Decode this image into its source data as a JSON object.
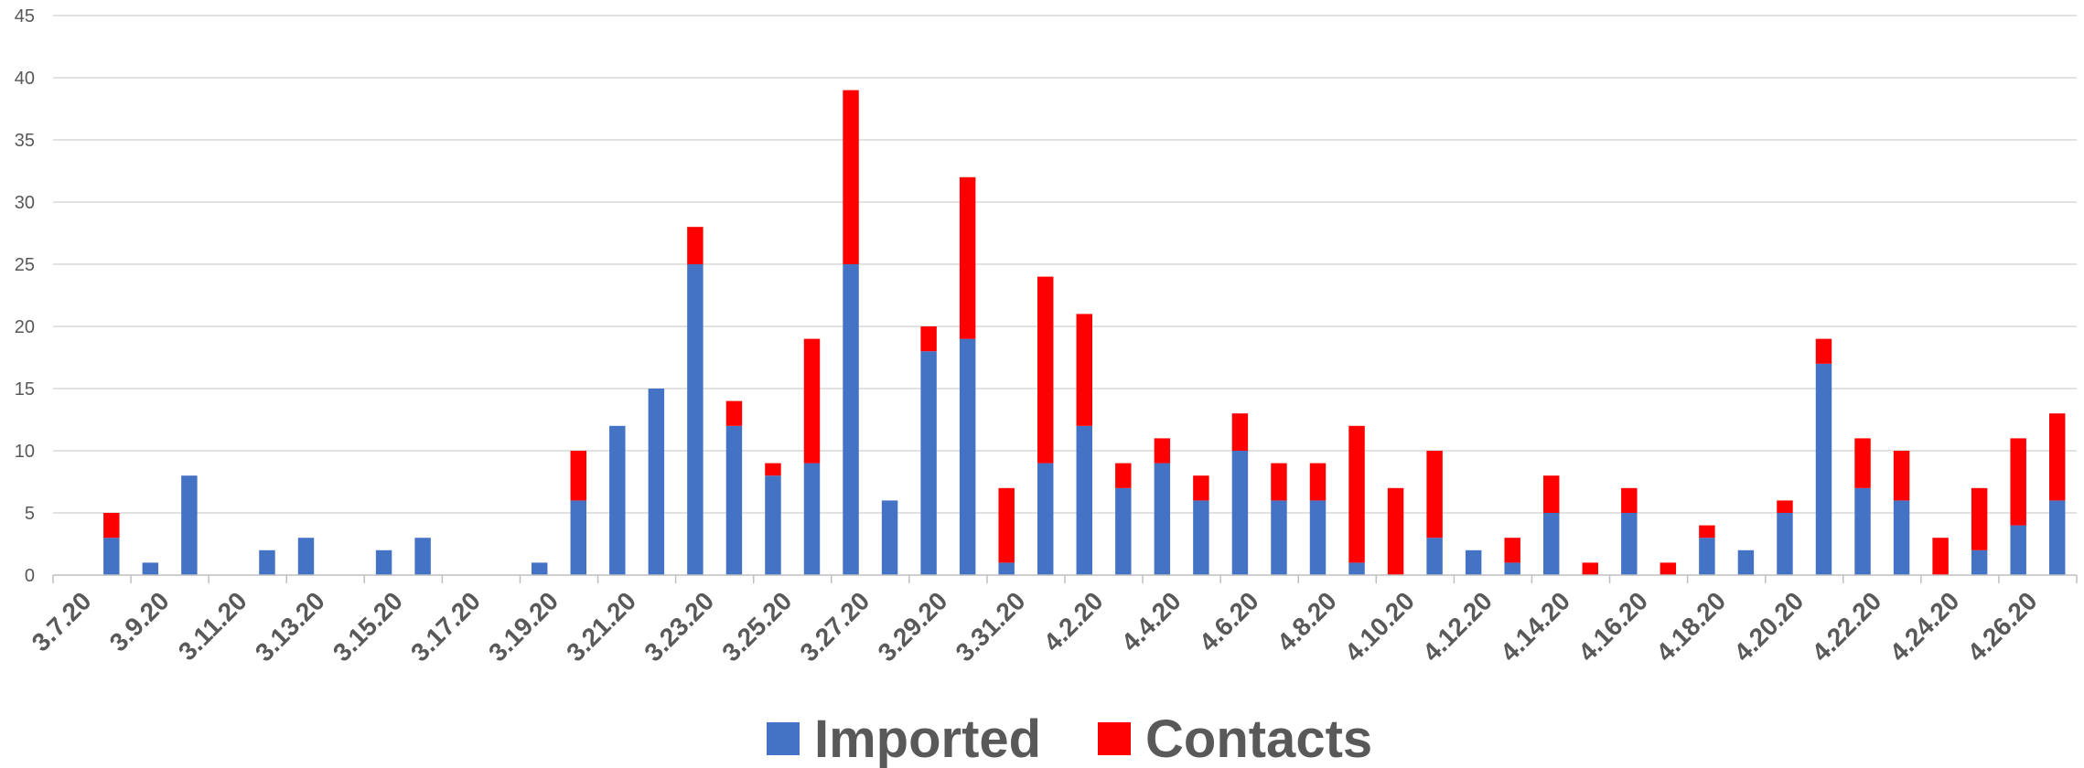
{
  "chart_data": {
    "type": "bar",
    "stacked": true,
    "title": "",
    "xlabel": "",
    "ylabel": "",
    "ylim": [
      0,
      45
    ],
    "yticks": [
      0,
      5,
      10,
      15,
      20,
      25,
      30,
      35,
      40,
      45
    ],
    "grid": true,
    "legend_position": "bottom-center",
    "categories": [
      "3.7.20",
      "3.8.20",
      "3.9.20",
      "3.10.20",
      "3.11.20",
      "3.12.20",
      "3.13.20",
      "3.14.20",
      "3.15.20",
      "3.16.20",
      "3.17.20",
      "3.18.20",
      "3.19.20",
      "3.20.20",
      "3.21.20",
      "3.22.20",
      "3.23.20",
      "3.24.20",
      "3.25.20",
      "3.26.20",
      "3.27.20",
      "3.28.20",
      "3.29.20",
      "3.30.20",
      "3.31.20",
      "4.1.20",
      "4.2.20",
      "4.3.20",
      "4.4.20",
      "4.5.20",
      "4.6.20",
      "4.7.20",
      "4.8.20",
      "4.9.20",
      "4.10.20",
      "4.11.20",
      "4.12.20",
      "4.13.20",
      "4.14.20",
      "4.15.20",
      "4.16.20",
      "4.17.20",
      "4.18.20",
      "4.19.20",
      "4.20.20",
      "4.21.20",
      "4.22.20",
      "4.23.20",
      "4.24.20",
      "4.25.20",
      "4.26.20",
      "4.27.20"
    ],
    "xtick_labels": [
      "3.7.20",
      "3.9.20",
      "3.11.20",
      "3.13.20",
      "3.15.20",
      "3.17.20",
      "3.19.20",
      "3.21.20",
      "3.23.20",
      "3.25.20",
      "3.27.20",
      "3.29.20",
      "3.31.20",
      "4.2.20",
      "4.4.20",
      "4.6.20",
      "4.8.20",
      "4.10.20",
      "4.12.20",
      "4.14.20",
      "4.16.20",
      "4.18.20",
      "4.20.20",
      "4.22.20",
      "4.24.20",
      "4.26.20"
    ],
    "series": [
      {
        "name": "Imported",
        "color": "#4472c4",
        "values": [
          0,
          3,
          1,
          8,
          0,
          2,
          3,
          0,
          2,
          3,
          0,
          0,
          1,
          6,
          12,
          15,
          25,
          12,
          8,
          9,
          25,
          6,
          18,
          19,
          1,
          9,
          12,
          7,
          9,
          6,
          10,
          6,
          6,
          1,
          0,
          3,
          2,
          1,
          5,
          0,
          5,
          0,
          3,
          2,
          5,
          17,
          7,
          6,
          0,
          2,
          4,
          6
        ]
      },
      {
        "name": "Contacts",
        "color": "#ff0000",
        "values": [
          0,
          2,
          0,
          0,
          0,
          0,
          0,
          0,
          0,
          0,
          0,
          0,
          0,
          4,
          0,
          0,
          3,
          2,
          1,
          10,
          14,
          0,
          2,
          13,
          6,
          15,
          9,
          2,
          2,
          2,
          3,
          3,
          3,
          11,
          7,
          7,
          0,
          2,
          3,
          1,
          2,
          1,
          1,
          0,
          1,
          2,
          4,
          4,
          3,
          5,
          7,
          7
        ]
      }
    ]
  }
}
